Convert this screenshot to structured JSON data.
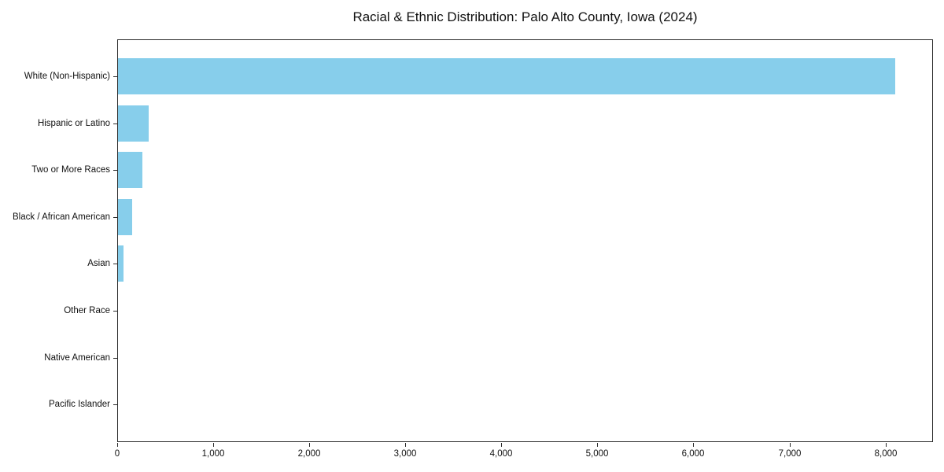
{
  "title": "Racial & Ethnic Distribution: Palo Alto County, Iowa (2024)",
  "chart_data": {
    "type": "bar",
    "orientation": "horizontal",
    "title": "Racial & Ethnic Distribution: Palo Alto County, Iowa (2024)",
    "categories": [
      "White (Non-Hispanic)",
      "Hispanic or Latino",
      "Two or More Races",
      "Black / African American",
      "Asian",
      "Other Race",
      "Native American",
      "Pacific Islander"
    ],
    "values": [
      8090,
      315,
      255,
      145,
      55,
      0,
      0,
      0
    ],
    "xlabel": "",
    "ylabel": "",
    "xlim": [
      0,
      8495
    ],
    "x_ticks": [
      0,
      1000,
      2000,
      3000,
      4000,
      5000,
      6000,
      7000,
      8000
    ],
    "x_tick_labels": [
      "0",
      "1,000",
      "2,000",
      "3,000",
      "4,000",
      "5,000",
      "6,000",
      "7,000",
      "8,000"
    ],
    "bar_color": "#87CEEB",
    "spine_color": "#2b2b2b",
    "grid": false,
    "legend": null
  }
}
